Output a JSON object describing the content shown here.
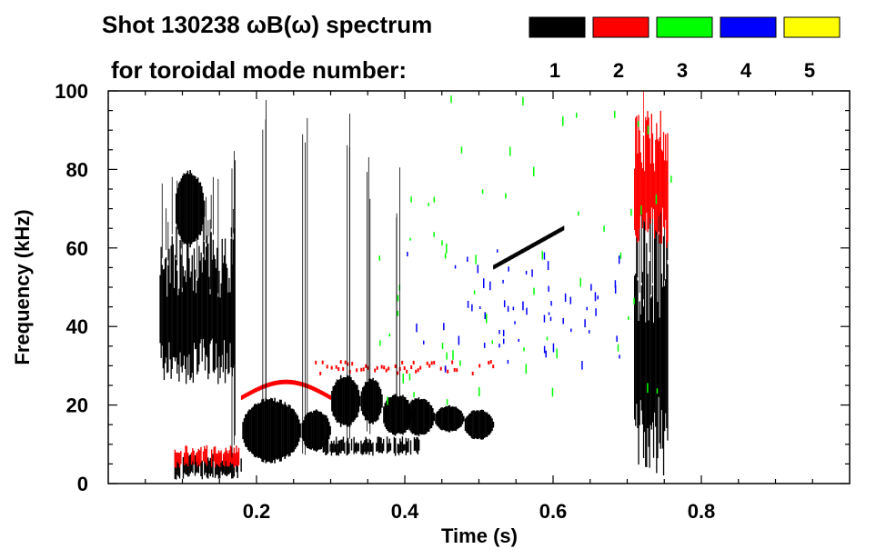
{
  "chart_data": {
    "type": "heatmap",
    "title_line1": "Shot 130238 ωB(ω) spectrum",
    "title_line2": "for toroidal mode number:",
    "xlabel": "Time (s)",
    "ylabel": "Frequency (kHz)",
    "xlim": [
      0.0,
      1.0
    ],
    "ylim": [
      0,
      100
    ],
    "x_ticks": [
      0.2,
      0.4,
      0.6,
      0.8
    ],
    "x_tick_labels": [
      "0.2",
      "0.4",
      "0.6",
      "0.8"
    ],
    "y_ticks": [
      0,
      20,
      40,
      60,
      80,
      100
    ],
    "y_tick_labels": [
      "0",
      "20",
      "40",
      "60",
      "80",
      "100"
    ],
    "legend": [
      {
        "n": 1,
        "label": "1",
        "color": "#000000"
      },
      {
        "n": 2,
        "label": "2",
        "color": "#ff0000"
      },
      {
        "n": 3,
        "label": "3",
        "color": "#00ff00"
      },
      {
        "n": 4,
        "label": "4",
        "color": "#0000ff"
      },
      {
        "n": 5,
        "label": "5",
        "color": "#ffff00"
      }
    ],
    "features": [
      {
        "mode": 1,
        "desc": "burst",
        "t": [
          0.07,
          0.17
        ],
        "f": [
          25,
          65
        ]
      },
      {
        "mode": 1,
        "desc": "tail",
        "t": [
          0.09,
          0.13
        ],
        "f": [
          60,
          80
        ]
      },
      {
        "mode": 1,
        "desc": "low",
        "t": [
          0.09,
          0.18
        ],
        "f": [
          1,
          8
        ]
      },
      {
        "mode": 1,
        "desc": "blob",
        "t": [
          0.18,
          0.26
        ],
        "f": [
          5,
          22
        ]
      },
      {
        "mode": 1,
        "desc": "blob",
        "t": [
          0.26,
          0.3
        ],
        "f": [
          8,
          19
        ]
      },
      {
        "mode": 1,
        "desc": "band",
        "t": [
          0.29,
          0.42
        ],
        "f": [
          7,
          12
        ]
      },
      {
        "mode": 1,
        "desc": "blob",
        "t": [
          0.3,
          0.34
        ],
        "f": [
          14,
          28
        ]
      },
      {
        "mode": 1,
        "desc": "blob",
        "t": [
          0.34,
          0.37
        ],
        "f": [
          15,
          27
        ]
      },
      {
        "mode": 1,
        "desc": "blob",
        "t": [
          0.37,
          0.41
        ],
        "f": [
          12,
          23
        ]
      },
      {
        "mode": 1,
        "desc": "blob",
        "t": [
          0.4,
          0.44
        ],
        "f": [
          12,
          22
        ]
      },
      {
        "mode": 1,
        "desc": "blob",
        "t": [
          0.44,
          0.48
        ],
        "f": [
          13,
          20
        ]
      },
      {
        "mode": 1,
        "desc": "tail",
        "t": [
          0.48,
          0.52
        ],
        "f": [
          11,
          19
        ]
      },
      {
        "mode": 1,
        "desc": "sweep",
        "t": [
          0.52,
          0.615
        ],
        "f": [
          55,
          65
        ]
      },
      {
        "mode": 1,
        "desc": "burst",
        "t": [
          0.71,
          0.755
        ],
        "f": [
          2,
          70
        ]
      },
      {
        "mode": 2,
        "desc": "arc",
        "t": [
          0.18,
          0.3
        ],
        "f": [
          22,
          26
        ]
      },
      {
        "mode": 2,
        "desc": "line",
        "t": [
          0.28,
          0.52
        ],
        "f": [
          28,
          31
        ]
      },
      {
        "mode": 2,
        "desc": "low",
        "t": [
          0.09,
          0.18
        ],
        "f": [
          4,
          10
        ]
      },
      {
        "mode": 2,
        "desc": "burst",
        "t": [
          0.71,
          0.755
        ],
        "f": [
          60,
          95
        ]
      },
      {
        "mode": 3,
        "desc": "scatter",
        "t": [
          0.36,
          0.76
        ],
        "f": [
          20,
          100
        ]
      },
      {
        "mode": 4,
        "desc": "scatter",
        "t": [
          0.4,
          0.7
        ],
        "f": [
          30,
          60
        ]
      }
    ]
  }
}
